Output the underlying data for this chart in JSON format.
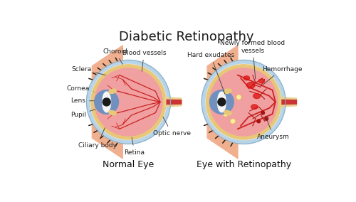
{
  "title": "Diabetic Retinopathy",
  "title_fontsize": 13,
  "title_color": "#1a1a1a",
  "left_label": "Normal Eye",
  "right_label": "Eye with Retinopathy",
  "label_fontsize": 9,
  "annotation_fontsize": 6.5,
  "colors": {
    "bg_color": "#ffffff",
    "outer_shell": "#b8d4e8",
    "choroid": "#e8c878",
    "inner_pink": "#f0a0a0",
    "iris_blue": "#7090c0",
    "lens_white": "#f5f5f5",
    "pupil_black": "#1a1a1a",
    "vessel_red": "#cc2222",
    "optic_nerve_yellow": "#e8d090",
    "optic_nerve_red": "#cc3333",
    "skin_color": "#f0b090",
    "eyelash_color": "#2a1a0a",
    "hemorrhage_dark": "#aa1111",
    "exudate_yellow": "#f0d840",
    "sclera_white": "#f8f8fc",
    "border_blue": "#8ab0c8",
    "diseased_red": "#dd1111"
  }
}
